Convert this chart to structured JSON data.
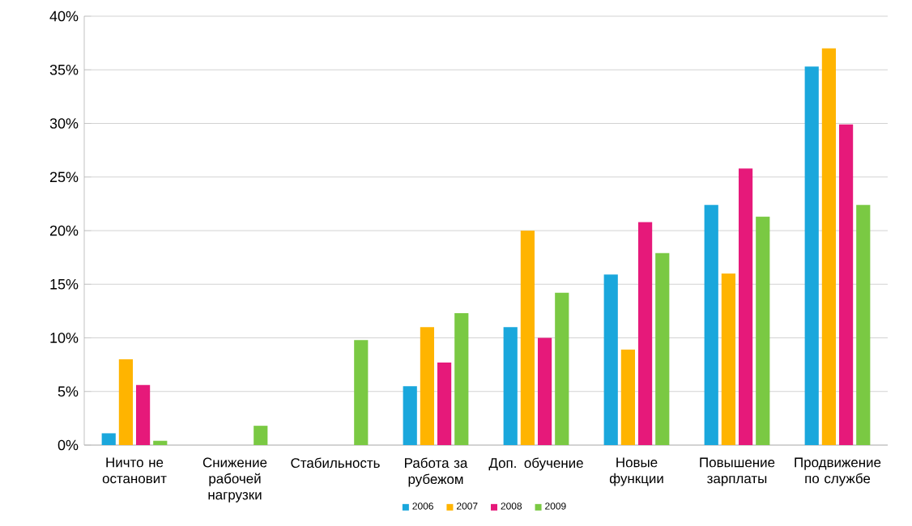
{
  "chart_data": {
    "type": "bar",
    "categories": [
      "Ничто не остановит",
      "Снижение рабочей нагрузки",
      "Стабильность",
      "Работа за рубежом",
      "Доп. обучение",
      "Новые функции",
      "Повышение зарплаты",
      "Продвижение по службе"
    ],
    "series": [
      {
        "name": "2006",
        "color": "#1aa7dc",
        "values": [
          1.1,
          0,
          0,
          5.5,
          11,
          15.9,
          22.4,
          35.3
        ]
      },
      {
        "name": "2007",
        "color": "#ffb400",
        "values": [
          8,
          0,
          0,
          11,
          20,
          8.9,
          16,
          37
        ]
      },
      {
        "name": "2008",
        "color": "#e6197a",
        "values": [
          5.6,
          0,
          0,
          7.7,
          10,
          20.8,
          25.8,
          29.9
        ]
      },
      {
        "name": "2009",
        "color": "#7ac943",
        "values": [
          0.4,
          1.8,
          9.8,
          12.3,
          14.2,
          17.9,
          21.3,
          22.4
        ]
      }
    ],
    "ylim": [
      0,
      40
    ],
    "yticks": [
      {
        "value": 0,
        "label": "0%"
      },
      {
        "value": 5,
        "label": "5%"
      },
      {
        "value": 10,
        "label": "10%"
      },
      {
        "value": 15,
        "label": "15%"
      },
      {
        "value": 20,
        "label": "20%"
      },
      {
        "value": 25,
        "label": "25%"
      },
      {
        "value": 30,
        "label": "30%"
      },
      {
        "value": 35,
        "label": "35%"
      },
      {
        "value": 40,
        "label": "40%"
      }
    ],
    "grid": "y",
    "legend": "bottom"
  }
}
